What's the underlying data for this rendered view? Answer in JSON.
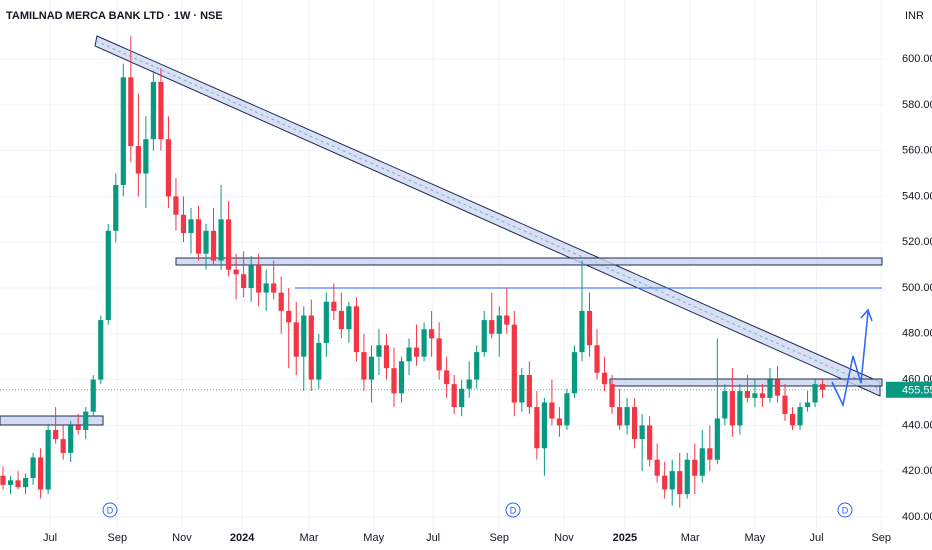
{
  "chart_data": {
    "type": "candlestick",
    "title": "TAMILNAD MERCA BANK LTD · 1W · NSE",
    "currency": "INR",
    "up_color": "#089981",
    "down_color": "#f23645",
    "grid": true,
    "markers": [
      "D",
      "D",
      "D"
    ],
    "xlim": [
      -0.4,
      117.3
    ],
    "ylim": [
      394.3,
      625.8
    ],
    "xticks": [
      {
        "value": 6.25,
        "label": "Jul"
      },
      {
        "value": 15.2,
        "label": "Sep"
      },
      {
        "value": 23.8,
        "label": "Nov"
      },
      {
        "value": 31.8,
        "label": "2024"
      },
      {
        "value": 40.7,
        "label": "Mar"
      },
      {
        "value": 49.3,
        "label": "May"
      },
      {
        "value": 57.2,
        "label": "Jul"
      },
      {
        "value": 66,
        "label": "Sep"
      },
      {
        "value": 74.6,
        "label": "Nov"
      },
      {
        "value": 82.7,
        "label": "2025"
      },
      {
        "value": 91.4,
        "label": "Mar"
      },
      {
        "value": 100,
        "label": "May"
      },
      {
        "value": 108.2,
        "label": "Jul"
      },
      {
        "value": 116.8,
        "label": "Sep"
      }
    ],
    "yticks": [
      {
        "value": 400,
        "label": "400.00"
      },
      {
        "value": 420,
        "label": "420.00"
      },
      {
        "value": 440,
        "label": "440.00"
      },
      {
        "value": 460,
        "label": "460.00"
      },
      {
        "value": 480,
        "label": "480.00"
      },
      {
        "value": 500,
        "label": "500.00"
      },
      {
        "value": 520,
        "label": "520.00"
      },
      {
        "value": 540,
        "label": "540.00"
      },
      {
        "value": 560,
        "label": "560.00"
      },
      {
        "value": 580,
        "label": "580.00"
      },
      {
        "value": 600,
        "label": "600.00"
      }
    ],
    "ohlc": [
      [
        418,
        422,
        412,
        414
      ],
      [
        414,
        418,
        410,
        416
      ],
      [
        416,
        420,
        412,
        413
      ],
      [
        413,
        419,
        410,
        417
      ],
      [
        417,
        428,
        414,
        426
      ],
      [
        426,
        430,
        408,
        412
      ],
      [
        412,
        440,
        410,
        438
      ],
      [
        438,
        448,
        432,
        434
      ],
      [
        434,
        440,
        425,
        428
      ],
      [
        428,
        442,
        424,
        440
      ],
      [
        440,
        445,
        436,
        438
      ],
      [
        438,
        448,
        434,
        446
      ],
      [
        446,
        462,
        444,
        460
      ],
      [
        460,
        488,
        458,
        486
      ],
      [
        486,
        528,
        484,
        525
      ],
      [
        525,
        550,
        520,
        545
      ],
      [
        545,
        598,
        540,
        592
      ],
      [
        592,
        610,
        555,
        562
      ],
      [
        562,
        585,
        540,
        550
      ],
      [
        550,
        575,
        535,
        565
      ],
      [
        565,
        595,
        560,
        590
      ],
      [
        590,
        596,
        560,
        565
      ],
      [
        565,
        575,
        535,
        540
      ],
      [
        540,
        548,
        525,
        532
      ],
      [
        532,
        540,
        520,
        524
      ],
      [
        524,
        535,
        515,
        530
      ],
      [
        530,
        536,
        512,
        515
      ],
      [
        515,
        528,
        508,
        525
      ],
      [
        525,
        535,
        510,
        512
      ],
      [
        512,
        545,
        508,
        530
      ],
      [
        530,
        538,
        505,
        508
      ],
      [
        508,
        515,
        495,
        506
      ],
      [
        506,
        516,
        496,
        500
      ],
      [
        500,
        514,
        494,
        510
      ],
      [
        510,
        515,
        492,
        498
      ],
      [
        498,
        508,
        490,
        502
      ],
      [
        502,
        512,
        495,
        498
      ],
      [
        498,
        505,
        480,
        490
      ],
      [
        490,
        500,
        465,
        485
      ],
      [
        485,
        494,
        462,
        470
      ],
      [
        470,
        492,
        455,
        488
      ],
      [
        488,
        495,
        455,
        460
      ],
      [
        460,
        480,
        456,
        476
      ],
      [
        476,
        498,
        470,
        494
      ],
      [
        494,
        502,
        486,
        490
      ],
      [
        490,
        498,
        478,
        482
      ],
      [
        482,
        494,
        476,
        492
      ],
      [
        492,
        496,
        468,
        472
      ],
      [
        472,
        480,
        455,
        460
      ],
      [
        460,
        475,
        450,
        470
      ],
      [
        470,
        482,
        462,
        475
      ],
      [
        475,
        480,
        460,
        465
      ],
      [
        465,
        474,
        448,
        454
      ],
      [
        454,
        470,
        450,
        468
      ],
      [
        468,
        478,
        462,
        474
      ],
      [
        474,
        484,
        466,
        470
      ],
      [
        470,
        485,
        468,
        482
      ],
      [
        482,
        490,
        470,
        478
      ],
      [
        478,
        485,
        460,
        464
      ],
      [
        464,
        470,
        452,
        458
      ],
      [
        458,
        462,
        445,
        448
      ],
      [
        448,
        460,
        444,
        456
      ],
      [
        456,
        468,
        452,
        460
      ],
      [
        460,
        475,
        456,
        472
      ],
      [
        472,
        490,
        470,
        486
      ],
      [
        486,
        498,
        478,
        480
      ],
      [
        480,
        492,
        470,
        488
      ],
      [
        488,
        500,
        480,
        484
      ],
      [
        484,
        490,
        444,
        450
      ],
      [
        450,
        465,
        446,
        462
      ],
      [
        462,
        468,
        445,
        448
      ],
      [
        448,
        455,
        425,
        430
      ],
      [
        430,
        452,
        418,
        450
      ],
      [
        450,
        460,
        440,
        443
      ],
      [
        443,
        448,
        435,
        440
      ],
      [
        440,
        456,
        438,
        454
      ],
      [
        454,
        475,
        452,
        472
      ],
      [
        472,
        512,
        468,
        490
      ],
      [
        490,
        498,
        470,
        475
      ],
      [
        475,
        482,
        460,
        463
      ],
      [
        463,
        470,
        455,
        458
      ],
      [
        458,
        462,
        445,
        448
      ],
      [
        448,
        456,
        438,
        440
      ],
      [
        440,
        452,
        436,
        448
      ],
      [
        448,
        452,
        430,
        434
      ],
      [
        434,
        445,
        420,
        440
      ],
      [
        440,
        444,
        422,
        425
      ],
      [
        425,
        432,
        415,
        418
      ],
      [
        418,
        424,
        408,
        412
      ],
      [
        412,
        425,
        405,
        420
      ],
      [
        420,
        428,
        404,
        410
      ],
      [
        410,
        428,
        408,
        425
      ],
      [
        425,
        432,
        410,
        418
      ],
      [
        418,
        438,
        415,
        430
      ],
      [
        430,
        440,
        420,
        425
      ],
      [
        425,
        478,
        423,
        443
      ],
      [
        443,
        458,
        440,
        455
      ],
      [
        455,
        465,
        435,
        440
      ],
      [
        440,
        458,
        436,
        455
      ],
      [
        455,
        462,
        450,
        452
      ],
      [
        452,
        460,
        448,
        454
      ],
      [
        454,
        458,
        448,
        452
      ],
      [
        452,
        465,
        450,
        460
      ],
      [
        460,
        466,
        450,
        453
      ],
      [
        453,
        458,
        442,
        445
      ],
      [
        445,
        448,
        438,
        440
      ],
      [
        440,
        450,
        438,
        448
      ],
      [
        448,
        455,
        446,
        450
      ],
      [
        450,
        460,
        448,
        458
      ],
      [
        458,
        460,
        452,
        455.55
      ]
    ]
  }
}
